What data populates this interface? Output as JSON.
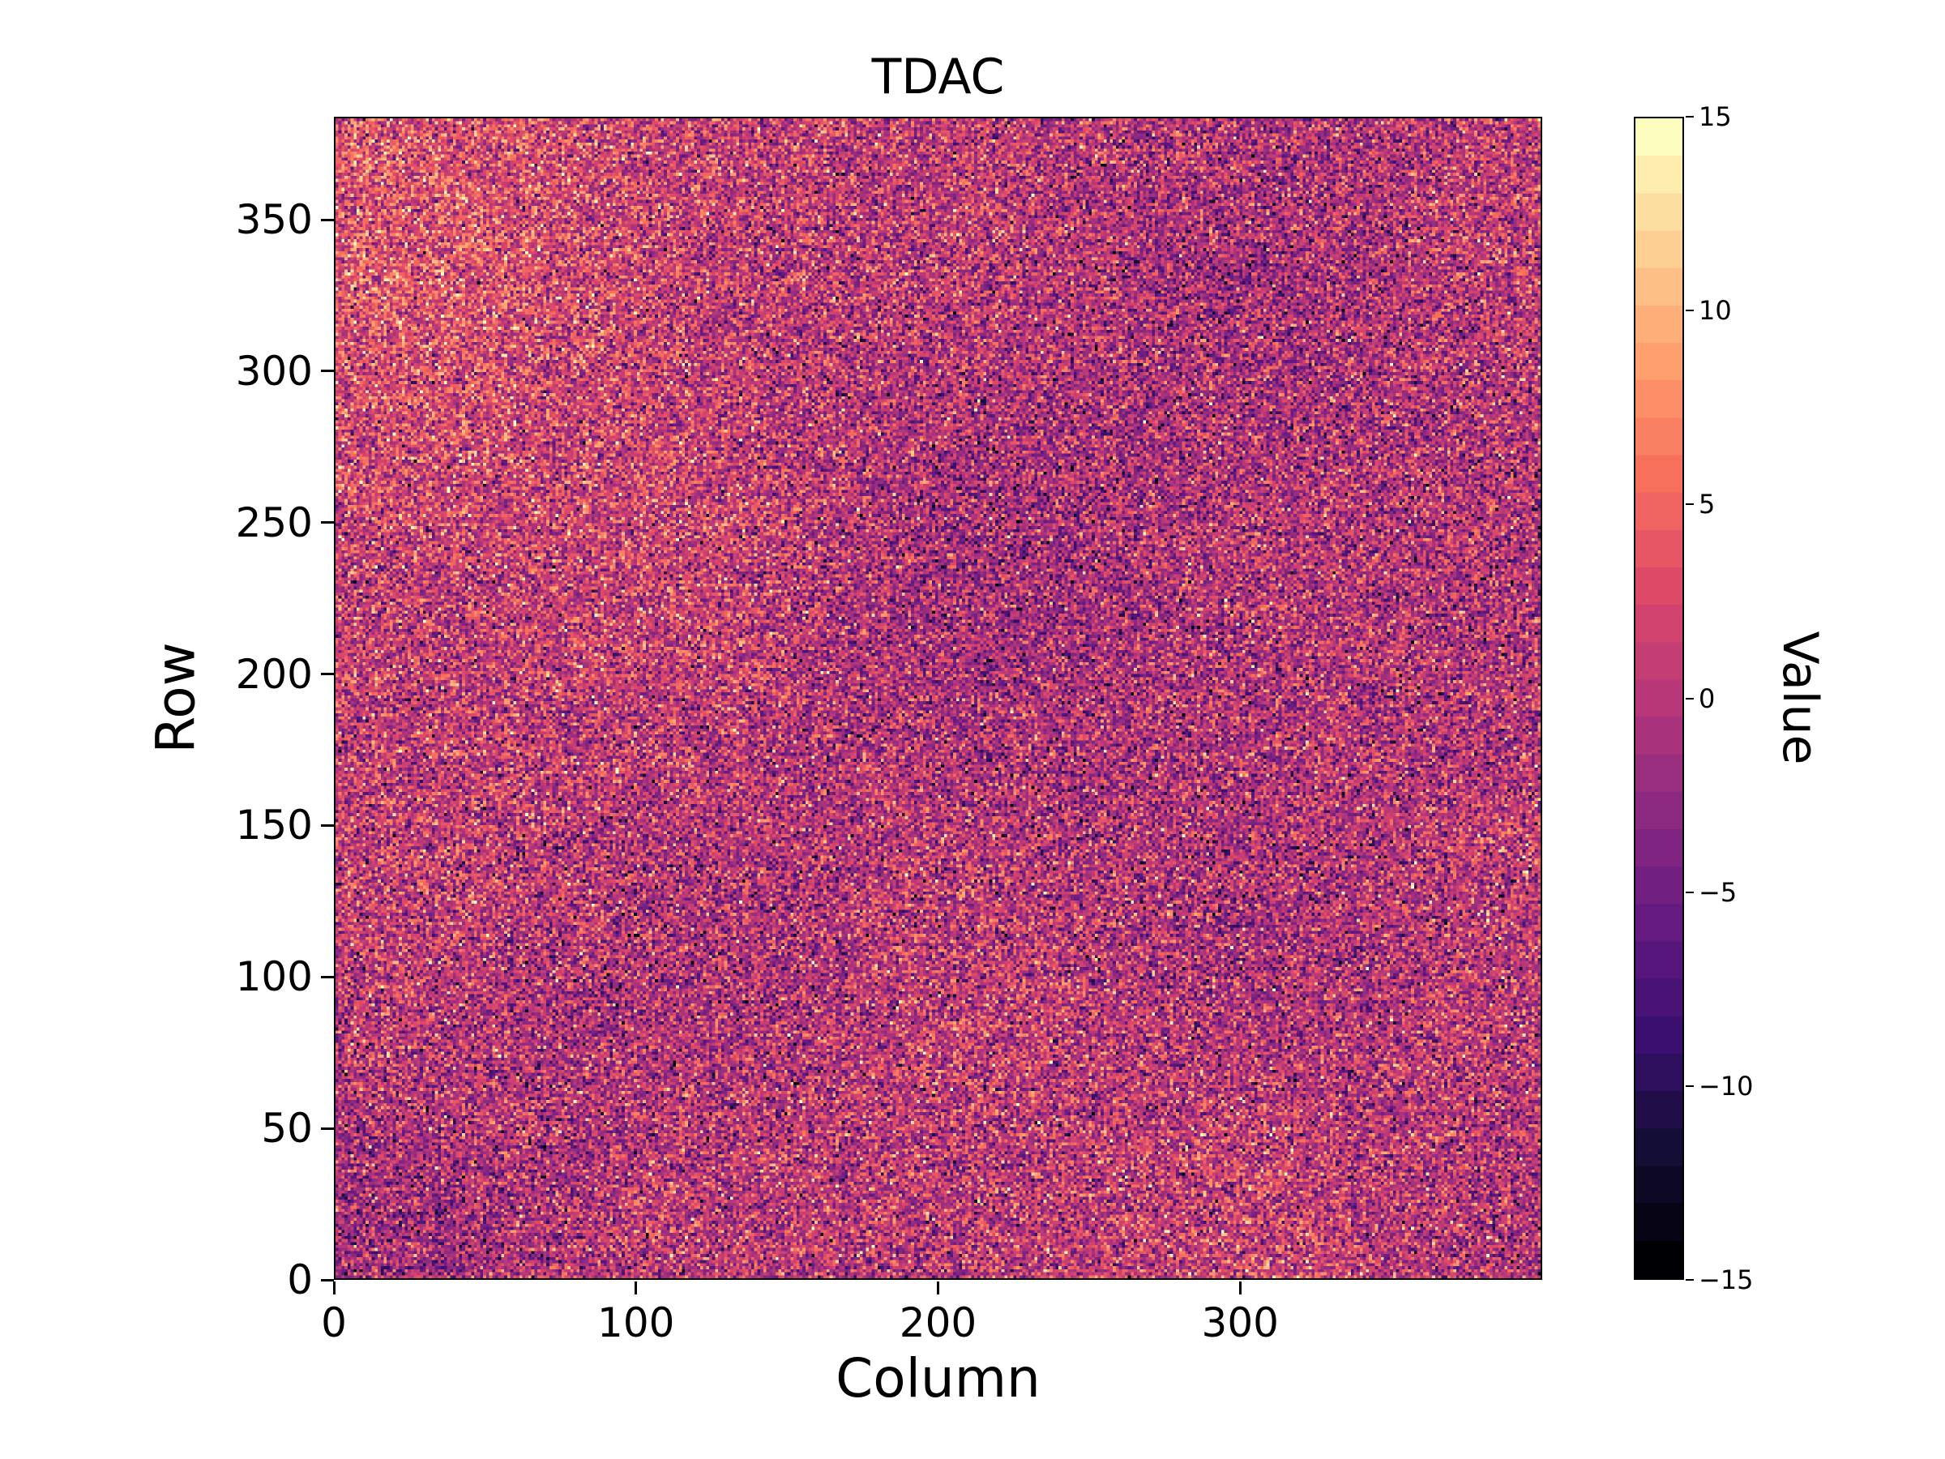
{
  "figure": {
    "background": "#ffffff",
    "text_color": "#000000"
  },
  "chart_data": {
    "type": "heatmap",
    "title": "TDAC",
    "xlabel": "Column",
    "ylabel": "Row",
    "x_range": [
      0,
      400
    ],
    "y_range": [
      0,
      384
    ],
    "x_ticks": [
      0,
      100,
      200,
      300
    ],
    "y_ticks": [
      0,
      50,
      100,
      150,
      200,
      250,
      300,
      350
    ],
    "grid": false,
    "legend": "none",
    "colorbar": {
      "label": "Value",
      "position": "right",
      "range": [
        -15,
        15
      ],
      "ticks": [
        -15,
        -10,
        -5,
        0,
        5,
        10,
        15
      ],
      "levels": 31,
      "colormap": "magma",
      "colormap_stops": [
        "#000004",
        "#140e36",
        "#3b0f70",
        "#641a80",
        "#8c2981",
        "#b73779",
        "#de4968",
        "#f7705c",
        "#fe9f6d",
        "#fecf92",
        "#fcfdbf"
      ]
    },
    "data_summary": {
      "ncols": 400,
      "nrows": 384,
      "value_type": "integer TDAC codes",
      "distribution": "noise centered near 0, std ~ 4.8, clipped to [-15, 15]; dominant mid-range magenta/purple with sparse near-black and near-white speckles",
      "pattern": "slightly brighter (higher) region toward upper-left of the map, mild low-frequency mottling elsewhere",
      "seed": 42
    }
  }
}
